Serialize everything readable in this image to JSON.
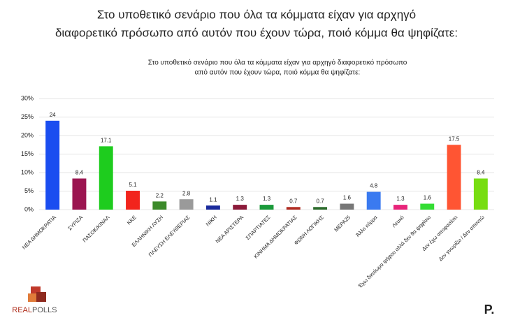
{
  "chart_data": {
    "type": "bar",
    "title": [
      "Στο υποθετικό σενάριο που όλα τα κόμματα είχαν για αρχηγό",
      "διαφορετικό πρόσωπο από αυτόν που έχουν τώρα, ποιό κόμμα θα ψηφίζατε:"
    ],
    "subtitle": [
      "Στο υποθετικό σενάριο που όλα τα κόμματα είχαν για αρχηγό διαφορετικό πρόσωπο",
      "από αυτόν που έχουν τώρα, ποιό κόμμα θα ψηφίζατε:"
    ],
    "categories": [
      "ΝΕΑ ΔΗΜΟΚΡΑΤΙΑ",
      "ΣΥΡΙΖΑ",
      "ΠΑΣΟΚ/ΚΙΝΑΛ",
      "ΚΚΕ",
      "ΕΛΛΗΝΙΚΗ ΛΥΣΗ",
      "ΠΛΕΥΣΗ ΕΛΕΥΘΕΡΙΑΣ",
      "ΝΙΚΗ",
      "ΝΕΑ ΑΡΙΣΤΕΡΑ",
      "ΣΠΑΡΤΙΑΤΕΣ",
      "ΚΙΝΗΜΑ ΔΗΜΟΚΡΑΤΙΑΣ",
      "ΦΩΝΗ ΛΟΓΙΚΗΣ",
      "ΜΕΡΑ25",
      "Άλλο κόμμα",
      "Λευκό",
      "Έχω δικαίωμα ψήφου αλλά δεν θα ψηφίσω",
      "Δεν έχω αποφασίσει",
      "Δεν γνωρίζω / Δεν απαντώ"
    ],
    "values": [
      24,
      8.4,
      17.1,
      5.1,
      2.2,
      2.8,
      1.1,
      1.3,
      1.3,
      0.7,
      0.7,
      1.6,
      4.8,
      1.3,
      1.6,
      17.5,
      8.4
    ],
    "colors": [
      "#1a4df0",
      "#9b1550",
      "#1ecc1e",
      "#f2241c",
      "#3c8a2a",
      "#9a9a9a",
      "#1a2a9c",
      "#8b1a3a",
      "#1a9a3a",
      "#b02a20",
      "#2a6a2a",
      "#777777",
      "#3a7af0",
      "#e8247a",
      "#33dd33",
      "#ff5533",
      "#77dd11"
    ],
    "ylim": [
      0,
      30
    ],
    "yticks": [
      {
        "value": 0,
        "label": "0%"
      },
      {
        "value": 5,
        "label": "5%"
      },
      {
        "value": 10,
        "label": "10%"
      },
      {
        "value": 15,
        "label": "15%"
      },
      {
        "value": 20,
        "label": "20%"
      },
      {
        "value": 25,
        "label": "25%"
      },
      {
        "value": 30,
        "label": "30%"
      }
    ],
    "grid": true
  },
  "logo_left": [
    "REAL",
    "POLLS"
  ],
  "logo_right": "P."
}
